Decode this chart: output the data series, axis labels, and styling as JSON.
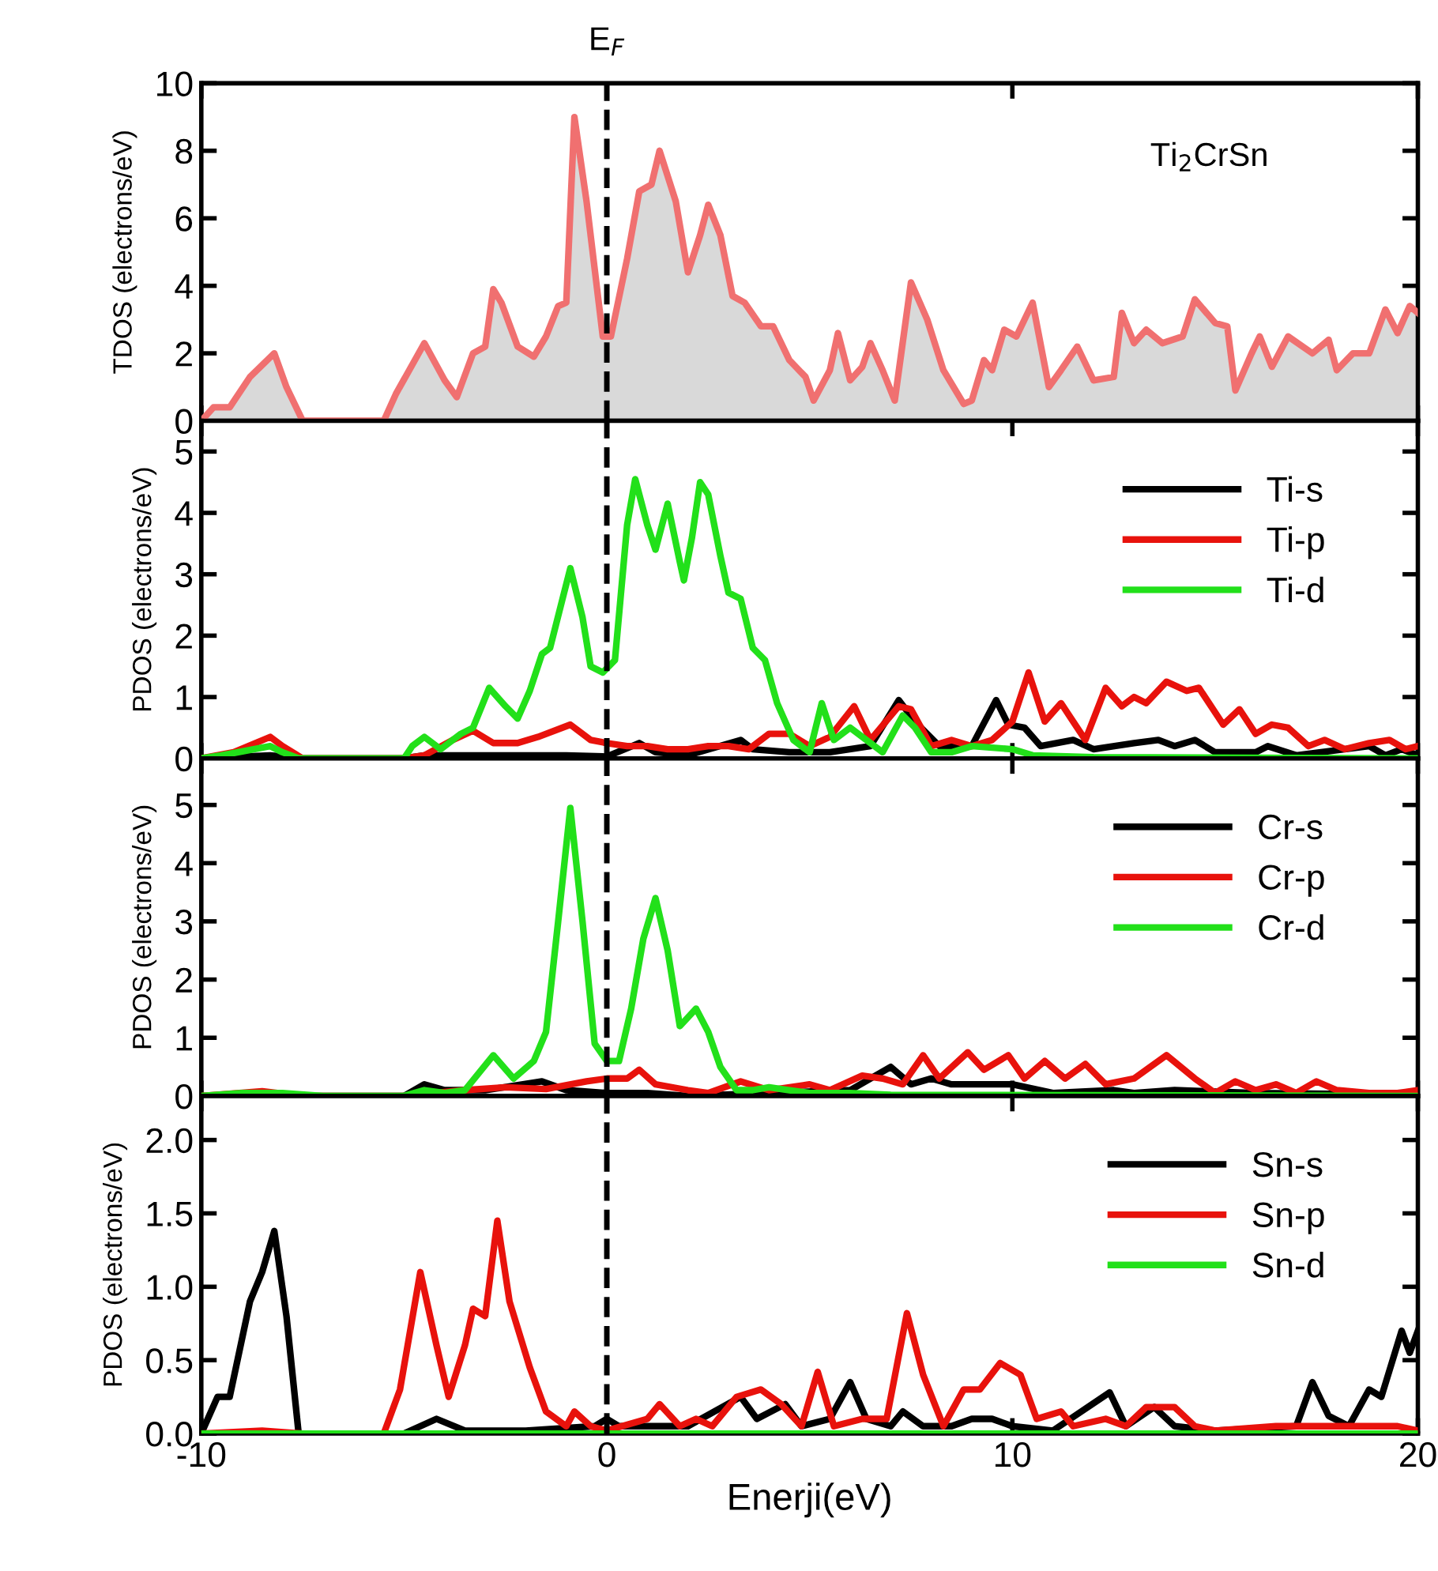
{
  "chart_data": [
    {
      "type": "area",
      "ylabel": "TDOS (electrons/eV)",
      "xlim": [
        -10,
        20
      ],
      "xticks": [
        -10,
        0,
        10,
        20
      ],
      "ylim": [
        0,
        10
      ],
      "yticks": [
        0,
        2,
        4,
        6,
        8,
        10
      ],
      "tick_labels": "y",
      "grid": false,
      "legend": false,
      "annotations": [
        "Ti$_{2}$CrSn"
      ],
      "ref_lines": [
        {
          "axis": "x",
          "value": 0,
          "label": "E$_{F}$",
          "line_style": "dashed",
          "color": "#000000"
        }
      ],
      "series": [
        {
          "color": "#f07070",
          "x": [
            -10,
            -9.7,
            -9.3,
            -8.8,
            -8.2,
            -7.9,
            -7.5,
            -5.5,
            -5.2,
            -4.5,
            -4.0,
            -3.7,
            -3.3,
            -3.0,
            -2.8,
            -2.6,
            -2.2,
            -1.8,
            -1.5,
            -1.2,
            -1.0,
            -0.8,
            -0.5,
            -0.1,
            0.1,
            0.5,
            0.8,
            1.1,
            1.3,
            1.7,
            2.0,
            2.3,
            2.5,
            2.8,
            3.1,
            3.4,
            3.8,
            4.1,
            4.5,
            4.9,
            5.1,
            5.5,
            5.7,
            6.0,
            6.3,
            6.5,
            6.8,
            7.1,
            7.5,
            7.9,
            8.3,
            8.8,
            9.0,
            9.3,
            9.5,
            9.8,
            10.1,
            10.5,
            10.9,
            11.2,
            11.6,
            12.0,
            12.5,
            12.7,
            13.0,
            13.3,
            13.7,
            14.2,
            14.5,
            15.0,
            15.3,
            15.5,
            15.9,
            16.1,
            16.4,
            16.8,
            17.4,
            17.8,
            18.0,
            18.4,
            18.8,
            19.2,
            19.5,
            19.8,
            20
          ],
          "values": [
            0,
            0.4,
            0.4,
            1.3,
            2.0,
            1.0,
            0,
            0,
            0.8,
            2.3,
            1.2,
            0.7,
            2.0,
            2.2,
            3.9,
            3.5,
            2.2,
            1.9,
            2.5,
            3.4,
            3.5,
            9.0,
            6.5,
            2.5,
            2.5,
            4.8,
            6.8,
            7.0,
            8.0,
            6.5,
            4.4,
            5.5,
            6.4,
            5.5,
            3.7,
            3.5,
            2.8,
            2.8,
            1.8,
            1.3,
            0.6,
            1.5,
            2.6,
            1.2,
            1.6,
            2.3,
            1.5,
            0.6,
            4.1,
            3.0,
            1.5,
            0.5,
            0.6,
            1.8,
            1.5,
            2.7,
            2.5,
            3.5,
            1.0,
            1.5,
            2.2,
            1.2,
            1.3,
            3.2,
            2.3,
            2.7,
            2.3,
            2.5,
            3.6,
            2.9,
            2.8,
            0.9,
            2.0,
            2.5,
            1.6,
            2.5,
            2.0,
            2.4,
            1.5,
            2.0,
            2.0,
            3.3,
            2.6,
            3.4,
            3.2
          ]
        }
      ]
    },
    {
      "type": "line",
      "ylabel": "PDOS (electrons/eV)",
      "xlim": [
        -10,
        20
      ],
      "xticks": [
        -10,
        0,
        10,
        20
      ],
      "ylim": [
        0,
        5.5
      ],
      "yticks": [
        0,
        1,
        2,
        3,
        4,
        5
      ],
      "tick_labels": "y",
      "grid": false,
      "legend": "top right",
      "marker": "none",
      "line_style": "solid",
      "ref_lines": [
        {
          "axis": "x",
          "value": 0,
          "line_style": "dashed",
          "color": "#000000"
        }
      ],
      "series": [
        {
          "name": "Ti-s",
          "color": "#000000",
          "x": [
            -10,
            -8.3,
            -7.5,
            -5,
            -4.5,
            -2,
            -1,
            0,
            0.8,
            1.2,
            2,
            3.3,
            3.6,
            4.5,
            5.5,
            6.5,
            7.2,
            7.6,
            8.2,
            9,
            9.6,
            9.9,
            10.3,
            10.7,
            11.5,
            12,
            13,
            13.6,
            14,
            14.5,
            15,
            16,
            16.3,
            17,
            18.8,
            19.2,
            19.6,
            20
          ],
          "values": [
            0,
            0.05,
            0,
            0,
            0.05,
            0.05,
            0.05,
            0.03,
            0.25,
            0.1,
            0.05,
            0.3,
            0.15,
            0.1,
            0.1,
            0.2,
            0.95,
            0.6,
            0.2,
            0.2,
            0.95,
            0.55,
            0.5,
            0.2,
            0.3,
            0.15,
            0.25,
            0.3,
            0.2,
            0.3,
            0.1,
            0.1,
            0.2,
            0.05,
            0.2,
            0.05,
            0.15,
            0.05
          ]
        },
        {
          "name": "Ti-p",
          "color": "#e8120c",
          "x": [
            -10,
            -9.2,
            -8.3,
            -8,
            -7.5,
            -5,
            -4.5,
            -3.8,
            -3.3,
            -2.8,
            -2.2,
            -1.7,
            -0.9,
            -0.4,
            0,
            0.5,
            1,
            1.5,
            2,
            2.5,
            3,
            3.5,
            4,
            4.5,
            5,
            5.5,
            6.1,
            6.5,
            7.2,
            7.5,
            8,
            8.5,
            9,
            9.5,
            10,
            10.4,
            10.8,
            11.2,
            11.5,
            11.8,
            12.3,
            12.7,
            13,
            13.3,
            13.8,
            14.3,
            14.6,
            15.2,
            15.6,
            16,
            16.4,
            16.8,
            17.3,
            17.7,
            18.2,
            18.8,
            19.3,
            19.7,
            20
          ],
          "values": [
            0,
            0.1,
            0.35,
            0.2,
            0,
            0,
            0.05,
            0.3,
            0.45,
            0.25,
            0.25,
            0.35,
            0.55,
            0.3,
            0.25,
            0.2,
            0.2,
            0.15,
            0.15,
            0.2,
            0.2,
            0.15,
            0.4,
            0.4,
            0.2,
            0.35,
            0.85,
            0.3,
            0.85,
            0.8,
            0.2,
            0.3,
            0.2,
            0.3,
            0.6,
            1.4,
            0.6,
            0.9,
            0.6,
            0.3,
            1.15,
            0.85,
            1.0,
            0.9,
            1.25,
            1.1,
            1.15,
            0.55,
            0.8,
            0.4,
            0.55,
            0.5,
            0.2,
            0.3,
            0.15,
            0.25,
            0.3,
            0.15,
            0.2
          ]
        },
        {
          "name": "Ti-d",
          "color": "#22e01a",
          "x": [
            -10,
            -9.5,
            -8.3,
            -8,
            -7.6,
            -5,
            -4.8,
            -4.5,
            -4.1,
            -3.6,
            -3.3,
            -2.9,
            -2.5,
            -2.2,
            -1.9,
            -1.6,
            -1.4,
            -0.9,
            -0.6,
            -0.4,
            -0.1,
            0.2,
            0.5,
            0.7,
            1.0,
            1.2,
            1.5,
            1.8,
            1.9,
            2.1,
            2.3,
            2.5,
            2.8,
            3.0,
            3.3,
            3.6,
            3.9,
            4.2,
            4.6,
            5.0,
            5.3,
            5.6,
            6.0,
            6.4,
            6.8,
            7.3,
            7.6,
            8.0,
            8.5,
            9,
            10,
            10.5,
            12,
            20
          ],
          "values": [
            0,
            0.05,
            0.2,
            0.1,
            0,
            0,
            0.2,
            0.35,
            0.15,
            0.4,
            0.5,
            1.15,
            0.85,
            0.65,
            1.1,
            1.7,
            1.8,
            3.1,
            2.3,
            1.5,
            1.4,
            1.6,
            3.8,
            4.55,
            3.8,
            3.4,
            4.15,
            3.2,
            2.9,
            3.6,
            4.5,
            4.3,
            3.3,
            2.7,
            2.6,
            1.8,
            1.6,
            0.9,
            0.3,
            0.1,
            0.9,
            0.3,
            0.5,
            0.3,
            0.1,
            0.7,
            0.5,
            0.1,
            0.1,
            0.2,
            0.15,
            0.05,
            0.02,
            0
          ]
        }
      ]
    },
    {
      "type": "line",
      "ylabel": "PDOS (electrons/eV)",
      "xlim": [
        -10,
        20
      ],
      "xticks": [
        -10,
        0,
        10,
        20
      ],
      "ylim": [
        0,
        5.8
      ],
      "yticks": [
        0,
        1,
        2,
        3,
        4,
        5
      ],
      "tick_labels": "y",
      "grid": false,
      "legend": "top right",
      "marker": "none",
      "line_style": "solid",
      "ref_lines": [
        {
          "axis": "x",
          "value": 0,
          "line_style": "dashed",
          "color": "#000000"
        }
      ],
      "series": [
        {
          "name": "Cr-s",
          "color": "#000000",
          "x": [
            -10,
            -5,
            -4.5,
            -4,
            -3,
            -1.6,
            -1,
            0,
            1,
            2,
            4,
            6,
            7,
            7.5,
            8,
            8.5,
            10,
            11,
            12.5,
            13,
            14,
            16,
            20
          ],
          "values": [
            0,
            0,
            0.2,
            0.1,
            0.1,
            0.25,
            0.1,
            0.05,
            0.05,
            0,
            0.05,
            0.1,
            0.5,
            0.2,
            0.3,
            0.2,
            0.2,
            0.05,
            0.1,
            0.05,
            0.1,
            0.05,
            0.02
          ]
        },
        {
          "name": "Cr-p",
          "color": "#e8120c",
          "x": [
            -10,
            -8.5,
            -7.5,
            -5,
            -3.5,
            -2.5,
            -1.5,
            -0.5,
            0,
            0.5,
            0.8,
            1.2,
            2,
            2.5,
            3.3,
            4,
            5,
            5.5,
            6.3,
            6.8,
            7.3,
            7.8,
            8.2,
            8.9,
            9.3,
            9.9,
            10.3,
            10.8,
            11.3,
            11.8,
            12.3,
            13,
            13.8,
            14.5,
            15,
            15.5,
            16,
            16.5,
            17,
            17.5,
            18,
            18.8,
            19.5,
            20
          ],
          "values": [
            0,
            0.08,
            0,
            0,
            0.1,
            0.15,
            0.12,
            0.25,
            0.3,
            0.3,
            0.45,
            0.2,
            0.1,
            0.05,
            0.25,
            0.1,
            0.2,
            0.1,
            0.35,
            0.3,
            0.2,
            0.7,
            0.3,
            0.75,
            0.45,
            0.7,
            0.3,
            0.6,
            0.3,
            0.55,
            0.2,
            0.3,
            0.7,
            0.3,
            0.05,
            0.25,
            0.1,
            0.2,
            0.05,
            0.25,
            0.1,
            0.05,
            0.05,
            0.1
          ]
        },
        {
          "name": "Cr-d",
          "color": "#22e01a",
          "x": [
            -10,
            -9,
            -8,
            -7,
            -5,
            -4.5,
            -4,
            -3.5,
            -2.8,
            -2.3,
            -1.8,
            -1.5,
            -1.2,
            -0.9,
            -0.6,
            -0.3,
            0,
            0.3,
            0.6,
            0.9,
            1.2,
            1.5,
            1.8,
            2.2,
            2.5,
            2.8,
            3.2,
            3.6,
            4,
            4.5,
            5,
            6,
            7,
            20
          ],
          "values": [
            0,
            0.05,
            0.05,
            0,
            0,
            0.1,
            0.05,
            0.1,
            0.7,
            0.3,
            0.6,
            1.1,
            3.0,
            4.95,
            3.0,
            0.9,
            0.6,
            0.6,
            1.5,
            2.7,
            3.4,
            2.5,
            1.2,
            1.5,
            1.1,
            0.5,
            0.1,
            0.1,
            0.15,
            0.1,
            0.05,
            0.05,
            0.02,
            0
          ]
        }
      ]
    },
    {
      "type": "line",
      "ylabel": "PDOS (electrons/eV)",
      "xlabel": "Enerji(eV)",
      "xlim": [
        -10,
        20
      ],
      "xticks": [
        -10,
        0,
        10,
        20
      ],
      "ylim": [
        0,
        2.3
      ],
      "yticks": [
        {
          "value": 0,
          "label": "0.0"
        },
        {
          "value": 0.5,
          "label": "0.5"
        },
        {
          "value": 1,
          "label": "1.0"
        },
        {
          "value": 1.5,
          "label": "1.5"
        },
        {
          "value": 2,
          "label": "2.0"
        }
      ],
      "grid": false,
      "legend": "top right",
      "marker": "none",
      "line_style": "solid",
      "ref_lines": [
        {
          "axis": "x",
          "value": 0,
          "line_style": "dashed",
          "color": "#000000"
        }
      ],
      "series": [
        {
          "name": "Sn-s",
          "color": "#000000",
          "x": [
            -10,
            -9.6,
            -9.3,
            -8.8,
            -8.5,
            -8.2,
            -7.9,
            -7.6,
            -5,
            -4.2,
            -3.5,
            -2,
            -0.3,
            0,
            0.3,
            1,
            2,
            3.3,
            3.7,
            4.4,
            4.8,
            5.5,
            6.0,
            6.4,
            7,
            7.3,
            7.8,
            8.5,
            9.0,
            9.5,
            10,
            11,
            12.4,
            12.8,
            13.5,
            14,
            15,
            17,
            17.4,
            17.8,
            18.3,
            18.8,
            19.1,
            19.6,
            19.8,
            20
          ],
          "values": [
            0,
            0.25,
            0.25,
            0.9,
            1.1,
            1.38,
            0.8,
            0,
            0,
            0.1,
            0.02,
            0.02,
            0.05,
            0.1,
            0.05,
            0.05,
            0.05,
            0.25,
            0.1,
            0.2,
            0.05,
            0.1,
            0.35,
            0.1,
            0.05,
            0.15,
            0.05,
            0.05,
            0.1,
            0.1,
            0.05,
            0.02,
            0.28,
            0.05,
            0.18,
            0.05,
            0.02,
            0.05,
            0.35,
            0.12,
            0.05,
            0.3,
            0.25,
            0.7,
            0.55,
            0.7
          ]
        },
        {
          "name": "Sn-p",
          "color": "#e8120c",
          "x": [
            -10,
            -8.5,
            -7.5,
            -5.5,
            -5.1,
            -4.6,
            -4.2,
            -3.9,
            -3.5,
            -3.3,
            -3.0,
            -2.7,
            -2.4,
            -1.9,
            -1.5,
            -1.0,
            -0.8,
            -0.4,
            0,
            1,
            1.3,
            1.8,
            2.2,
            2.6,
            3.2,
            3.8,
            4.3,
            4.8,
            5.2,
            5.6,
            6.3,
            6.9,
            7.4,
            7.8,
            8.3,
            8.8,
            9.2,
            9.7,
            10.2,
            10.6,
            11.2,
            11.5,
            12.3,
            12.8,
            13.3,
            14.0,
            14.5,
            15,
            16.5,
            17.5,
            18.5,
            19.5,
            20
          ],
          "values": [
            0,
            0.02,
            0,
            0,
            0.3,
            1.1,
            0.6,
            0.25,
            0.6,
            0.85,
            0.8,
            1.45,
            0.9,
            0.45,
            0.15,
            0.05,
            0.15,
            0.05,
            0.02,
            0.1,
            0.2,
            0.05,
            0.1,
            0.05,
            0.25,
            0.3,
            0.2,
            0.05,
            0.42,
            0.05,
            0.1,
            0.1,
            0.82,
            0.4,
            0.05,
            0.3,
            0.3,
            0.48,
            0.4,
            0.1,
            0.15,
            0.05,
            0.1,
            0.05,
            0.18,
            0.18,
            0.05,
            0.02,
            0.05,
            0.05,
            0.05,
            0.05,
            0.02
          ]
        },
        {
          "name": "Sn-d",
          "color": "#22e01a",
          "x": [
            -10,
            20
          ],
          "values": [
            0,
            0
          ]
        }
      ]
    }
  ]
}
